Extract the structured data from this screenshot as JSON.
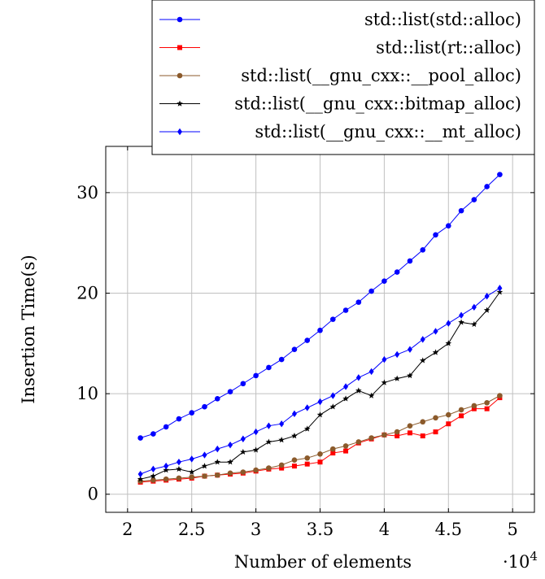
{
  "chart_data": {
    "type": "line",
    "title": "",
    "xlabel": "Number of elements",
    "ylabel": "Insertion Time(s)",
    "x_multiplier_label": "·10",
    "x_multiplier_exponent": "4",
    "xlim": [
      1.83,
      5.17
    ],
    "ylim": [
      -1.8,
      34.6
    ],
    "x_ticks": [
      2,
      2.5,
      3,
      3.5,
      4,
      4.5,
      5
    ],
    "x_tick_labels": [
      "2",
      "2.5",
      "3",
      "3.5",
      "4",
      "4.5",
      "5"
    ],
    "y_ticks": [
      0,
      10,
      20,
      30
    ],
    "y_tick_labels": [
      "0",
      "10",
      "20",
      "30"
    ],
    "grid": true,
    "legend_position": "top-right",
    "x": [
      2.1,
      2.2,
      2.3,
      2.4,
      2.5,
      2.6,
      2.7,
      2.8,
      2.9,
      3.0,
      3.1,
      3.2,
      3.3,
      3.4,
      3.5,
      3.6,
      3.7,
      3.8,
      3.9,
      4.0,
      4.1,
      4.2,
      4.3,
      4.4,
      4.5,
      4.6,
      4.7,
      4.8,
      4.9
    ],
    "series": [
      {
        "name": "std::list(std::alloc)",
        "color": "#0000ff",
        "marker": "circle",
        "values": [
          5.6,
          6.0,
          6.7,
          7.5,
          8.1,
          8.7,
          9.5,
          10.2,
          11.0,
          11.8,
          12.6,
          13.4,
          14.4,
          15.3,
          16.3,
          17.4,
          18.3,
          19.1,
          20.2,
          21.2,
          22.1,
          23.2,
          24.3,
          25.8,
          26.7,
          28.2,
          29.3,
          30.6,
          31.8
        ]
      },
      {
        "name": "std::list(rt::alloc)",
        "color": "#ff0000",
        "marker": "square",
        "values": [
          1.2,
          1.3,
          1.4,
          1.5,
          1.6,
          1.8,
          1.9,
          2.0,
          2.1,
          2.3,
          2.5,
          2.6,
          2.8,
          3.0,
          3.2,
          4.1,
          4.3,
          5.1,
          5.5,
          5.9,
          5.8,
          6.1,
          5.8,
          6.2,
          7.0,
          7.8,
          8.5,
          8.5,
          9.6
        ]
      },
      {
        "name": "std::list(__gnu_cxx::__pool_alloc)",
        "color": "#8b5a2b",
        "marker": "circle",
        "values": [
          1.3,
          1.4,
          1.5,
          1.6,
          1.7,
          1.8,
          1.9,
          2.1,
          2.2,
          2.4,
          2.6,
          2.9,
          3.4,
          3.6,
          4.0,
          4.5,
          4.8,
          5.2,
          5.6,
          5.9,
          6.2,
          6.8,
          7.2,
          7.6,
          7.9,
          8.4,
          8.8,
          9.1,
          9.8
        ]
      },
      {
        "name": "std::list(__gnu_cxx::bitmap_alloc)",
        "color": "#000000",
        "marker": "star",
        "values": [
          1.5,
          1.8,
          2.4,
          2.5,
          2.2,
          2.8,
          3.2,
          3.2,
          4.2,
          4.4,
          5.2,
          5.4,
          5.8,
          6.5,
          7.9,
          8.7,
          9.5,
          10.3,
          9.8,
          11.1,
          11.5,
          11.8,
          13.3,
          14.1,
          15.0,
          17.1,
          16.9,
          18.3,
          20.1
        ]
      },
      {
        "name": "std::list(__gnu_cxx::__mt_alloc)",
        "color": "#0000ff",
        "marker": "diamond",
        "values": [
          2.0,
          2.5,
          2.8,
          3.2,
          3.5,
          3.9,
          4.5,
          4.9,
          5.5,
          6.2,
          6.8,
          7.0,
          8.0,
          8.6,
          9.2,
          9.8,
          10.7,
          11.6,
          12.2,
          13.4,
          13.9,
          14.4,
          15.4,
          16.2,
          17.0,
          17.8,
          18.6,
          19.7,
          20.5
        ]
      }
    ]
  }
}
